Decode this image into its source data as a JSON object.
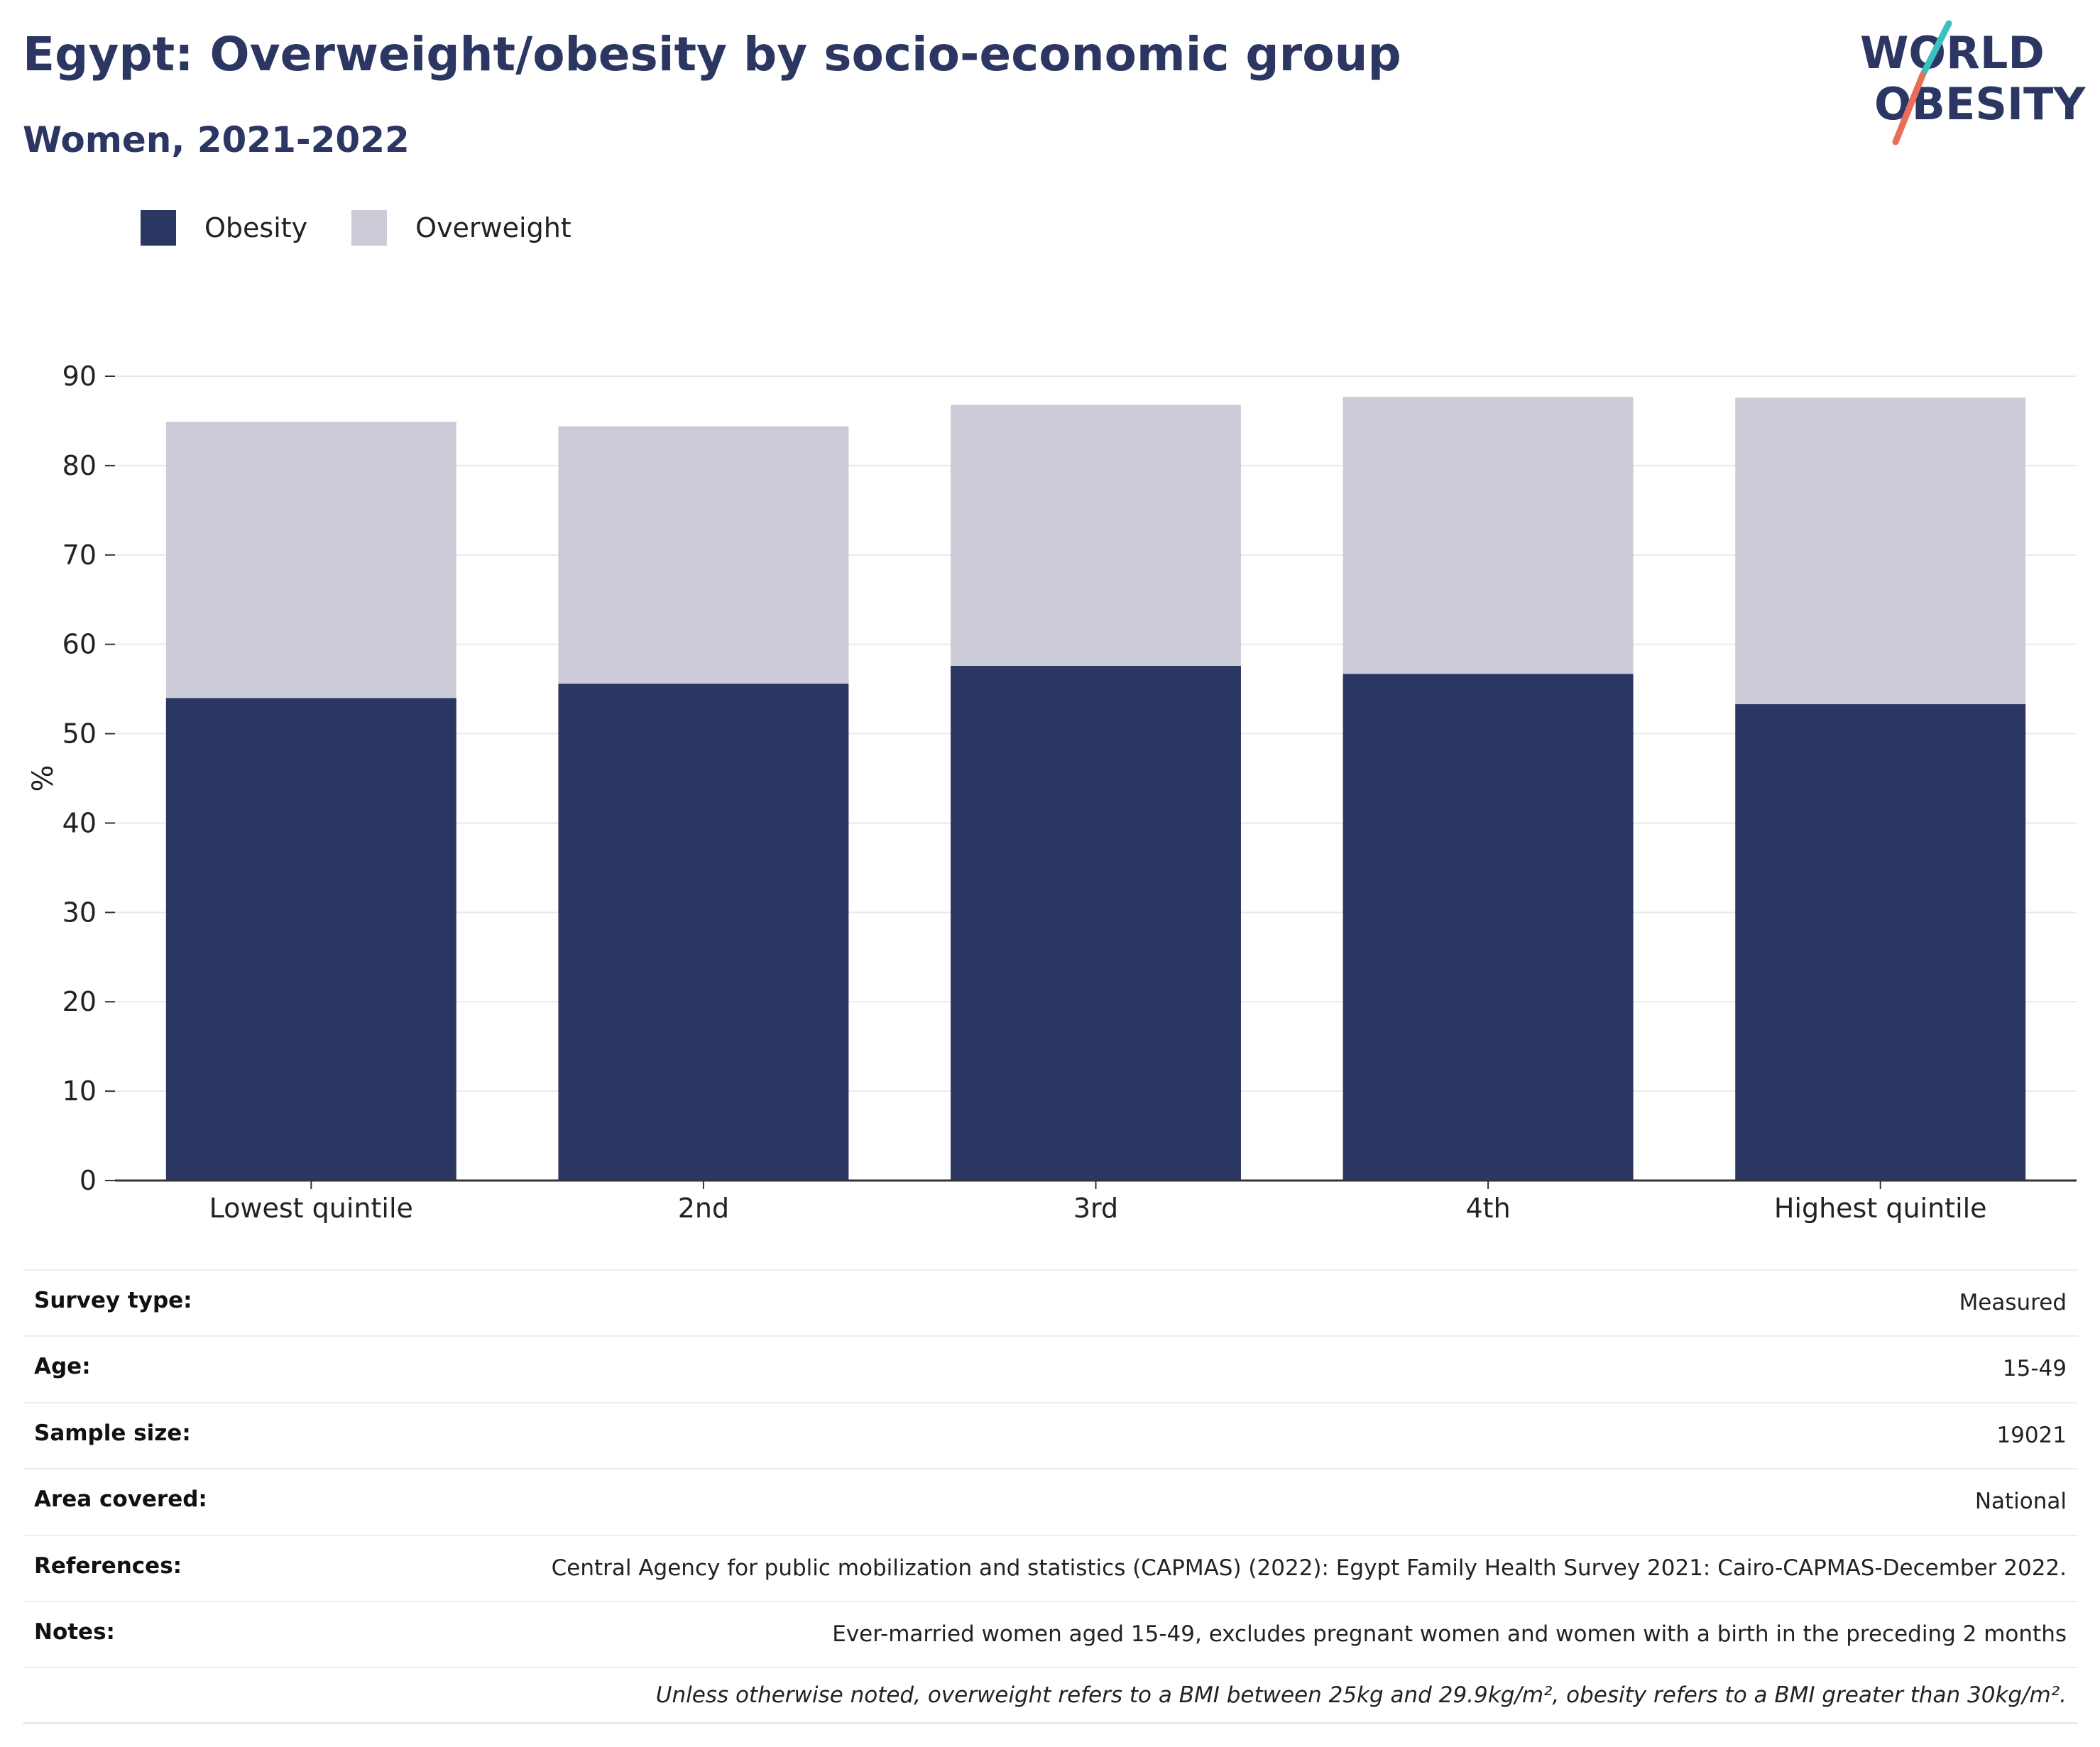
{
  "header": {
    "title": "Egypt: Overweight/obesity by socio-economic group",
    "subtitle": "Women, 2021-2022",
    "logo_line1": "WORLD",
    "logo_line2": "OBESITY"
  },
  "colors": {
    "obesity": "#2b3663",
    "overweight": "#cbccd7",
    "accent_teal": "#3bbfbf",
    "accent_coral": "#e86e5a"
  },
  "legend": {
    "items": [
      {
        "label": "Obesity",
        "color": "#2b3663"
      },
      {
        "label": "Overweight",
        "color": "#cbccd7"
      }
    ]
  },
  "chart_data": {
    "type": "bar",
    "stacked": true,
    "categories": [
      "Lowest quintile",
      "2nd",
      "3rd",
      "4th",
      "Highest quintile"
    ],
    "series": [
      {
        "name": "Obesity",
        "values": [
          54.0,
          55.6,
          57.6,
          56.7,
          53.3
        ]
      },
      {
        "name": "Overweight",
        "values": [
          30.9,
          28.8,
          29.2,
          31.0,
          34.3
        ]
      }
    ],
    "ylabel": "%",
    "ylim": [
      0,
      90
    ],
    "yticks": [
      0,
      10,
      20,
      30,
      40,
      50,
      60,
      70,
      80,
      90
    ],
    "grid": true,
    "legend_position": "top-left"
  },
  "meta": {
    "rows": [
      {
        "key": "Survey type:",
        "value": "Measured"
      },
      {
        "key": "Age:",
        "value": "15-49"
      },
      {
        "key": "Sample size:",
        "value": "19021"
      },
      {
        "key": "Area covered:",
        "value": "National"
      },
      {
        "key": "References:",
        "value": "Central Agency for public mobilization and statistics (CAPMAS) (2022): Egypt Family Health Survey 2021: Cairo-CAPMAS-December 2022."
      },
      {
        "key": "Notes:",
        "value": "Ever-married women aged 15-49, excludes pregnant women and women with a birth in the preceding 2 months"
      }
    ],
    "footnote": "Unless otherwise noted, overweight refers to a BMI between 25kg and 29.9kg/m², obesity refers to a BMI greater than 30kg/m²."
  }
}
